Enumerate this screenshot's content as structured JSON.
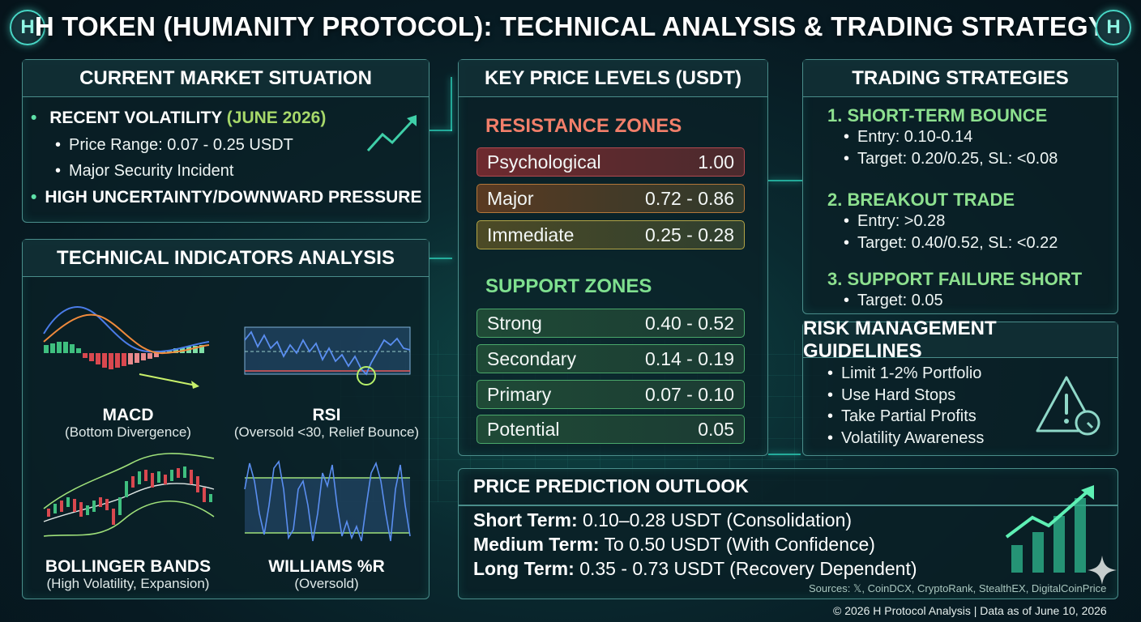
{
  "header": {
    "title": "H TOKEN (HUMANITY PROTOCOL): TECHNICAL ANALYSIS & TRADING STRATEGY",
    "logo_letter": "H"
  },
  "market": {
    "title": "CURRENT MARKET SITUATION",
    "volatility_label": "RECENT VOLATILITY",
    "volatility_date": "(JUNE 2026)",
    "price_range": "Price Range: 0.07 - 0.25 USDT",
    "incident": "Major Security Incident",
    "pressure": "HIGH UNCERTAINTY/DOWNWARD PRESSURE"
  },
  "indicators": {
    "title": "TECHNICAL INDICATORS ANALYSIS",
    "items": [
      {
        "name": "MACD",
        "note": "(Bottom Divergence)"
      },
      {
        "name": "RSI",
        "note": "(Oversold <30, Relief Bounce)"
      },
      {
        "name": "BOLLINGER BANDS",
        "note": "(High Volatility, Expansion)"
      },
      {
        "name": "WILLIAMS %R",
        "note": "(Oversold)"
      }
    ]
  },
  "levels": {
    "title": "KEY PRICE LEVELS (USDT)",
    "resistance_title": "RESISTANCE ZONES",
    "resistance": [
      {
        "label": "Psychological",
        "value": "1.00"
      },
      {
        "label": "Major",
        "value": "0.72 - 0.86"
      },
      {
        "label": "Immediate",
        "value": "0.25 - 0.28"
      }
    ],
    "support_title": "SUPPORT ZONES",
    "support": [
      {
        "label": "Strong",
        "value": "0.40 - 0.52"
      },
      {
        "label": "Secondary",
        "value": "0.14 - 0.19"
      },
      {
        "label": "Primary",
        "value": "0.07 - 0.10"
      },
      {
        "label": "Potential",
        "value": "0.05"
      }
    ]
  },
  "strategies": {
    "title": "TRADING STRATEGIES",
    "items": [
      {
        "name": "1. SHORT-TERM BOUNCE",
        "lines": [
          "Entry: 0.10-0.14",
          "Target: 0.20/0.25, SL: <0.08"
        ]
      },
      {
        "name": "2. BREAKOUT TRADE",
        "lines": [
          "Entry: >0.28",
          "Target: 0.40/0.52, SL: <0.22"
        ]
      },
      {
        "name": "3. SUPPORT FAILURE SHORT",
        "lines": [
          "Target: 0.05"
        ]
      }
    ]
  },
  "risk": {
    "title": "RISK MANAGEMENT GUIDELINES",
    "items": [
      "Limit 1-2% Portfolio",
      "Use Hard Stops",
      "Take Partial Profits",
      "Volatility Awareness"
    ]
  },
  "prediction": {
    "title": "PRICE PREDICTION OUTLOOK",
    "rows": [
      {
        "label": "Short Term:",
        "value": "0.10–0.28 USDT (Consolidation)"
      },
      {
        "label": "Medium Term:",
        "value": "To 0.50 USDT (With Confidence)"
      },
      {
        "label": "Long Term:",
        "value": "0.35 - 0.73 USDT (Recovery Dependent)"
      }
    ]
  },
  "sources": "Sources: 𝕏, CoinDCX, CryptoRank, StealthEX, DigitalCoinPrice",
  "footer": "© 2026 H Protocol Analysis | Data as of June 10, 2026",
  "colors": {
    "accent": "#2fe2c8",
    "resistance": "#f27f6a",
    "support": "#7fe08f",
    "strategy": "#8de08f"
  }
}
